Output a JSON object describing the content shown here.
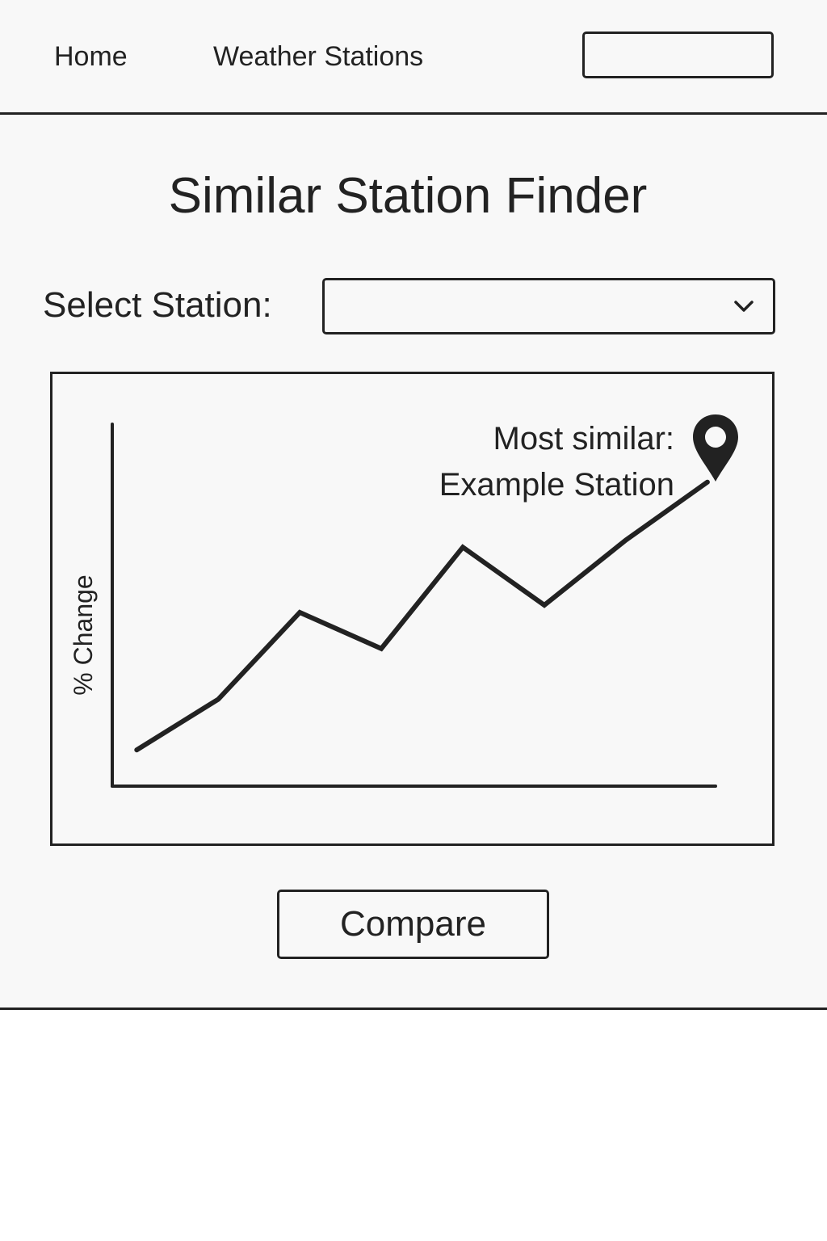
{
  "nav": {
    "home_label": "Home",
    "stations_label": "Weather Stations",
    "search_box_value": ""
  },
  "page": {
    "title": "Similar Station Finder"
  },
  "station_select": {
    "label": "Select Station:",
    "value": ""
  },
  "result": {
    "line1": "Most similar:",
    "line2": "Example Station",
    "marker_icon": "map-pin-icon"
  },
  "actions": {
    "compare_label": "Compare"
  },
  "chart_data": {
    "type": "line",
    "title": "",
    "xlabel": "",
    "ylabel": "% Change",
    "x": [
      1,
      2,
      3,
      4,
      5,
      6,
      7,
      8
    ],
    "series": [
      {
        "values": [
          5,
          12,
          24,
          19,
          33,
          25,
          34,
          42
        ]
      }
    ],
    "xlim": [
      0.7,
      8.1
    ],
    "ylim": [
      0,
      50
    ],
    "grid": false,
    "legend": "none",
    "color": "#222222"
  }
}
